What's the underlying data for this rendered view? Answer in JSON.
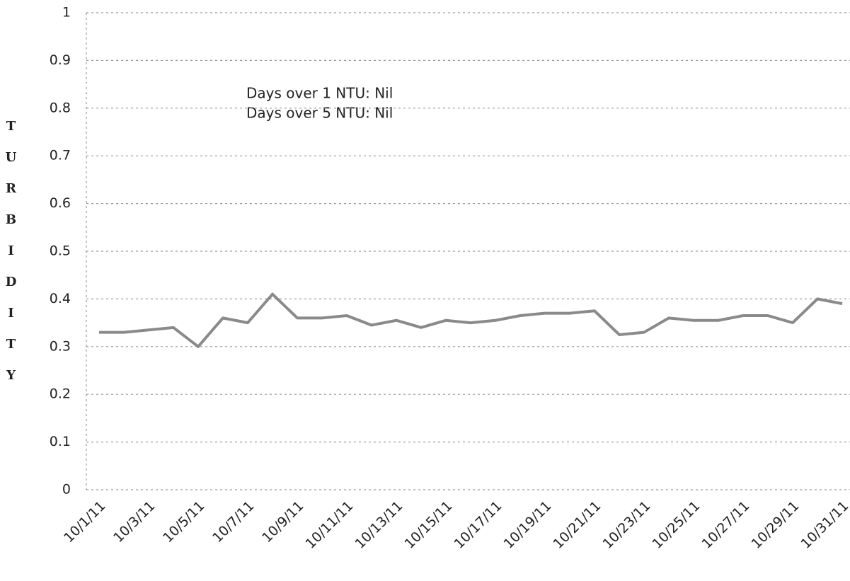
{
  "chart_data": {
    "type": "line",
    "y_label": "TURBIDITY",
    "annotations": [
      "Days over 1 NTU: Nil",
      "Days over 5 NTU: Nil"
    ],
    "categories": [
      "10/1/11",
      null,
      "10/3/11",
      null,
      "10/5/11",
      null,
      "10/7/11",
      null,
      "10/9/11",
      null,
      "10/11/11",
      null,
      "10/13/11",
      null,
      "10/15/11",
      null,
      "10/17/11",
      null,
      "10/19/11",
      null,
      "10/21/11",
      null,
      "10/23/11",
      null,
      "10/25/11",
      null,
      "10/27/11",
      null,
      "10/29/11",
      null,
      "10/31/11"
    ],
    "values": [
      0.33,
      0.33,
      0.335,
      0.34,
      0.3,
      0.36,
      0.35,
      0.41,
      0.36,
      0.36,
      0.365,
      0.345,
      0.355,
      0.34,
      0.355,
      0.35,
      0.355,
      0.365,
      0.37,
      0.37,
      0.375,
      0.325,
      0.33,
      0.36,
      0.355,
      0.355,
      0.365,
      0.365,
      0.35,
      0.4,
      0.39
    ],
    "color": "#8a8a8a",
    "ylim": [
      0,
      1
    ],
    "yticks": [
      0,
      0.1,
      0.2,
      0.3,
      0.4,
      0.5,
      0.6,
      0.7,
      0.8,
      0.9,
      1
    ],
    "grid": true
  }
}
